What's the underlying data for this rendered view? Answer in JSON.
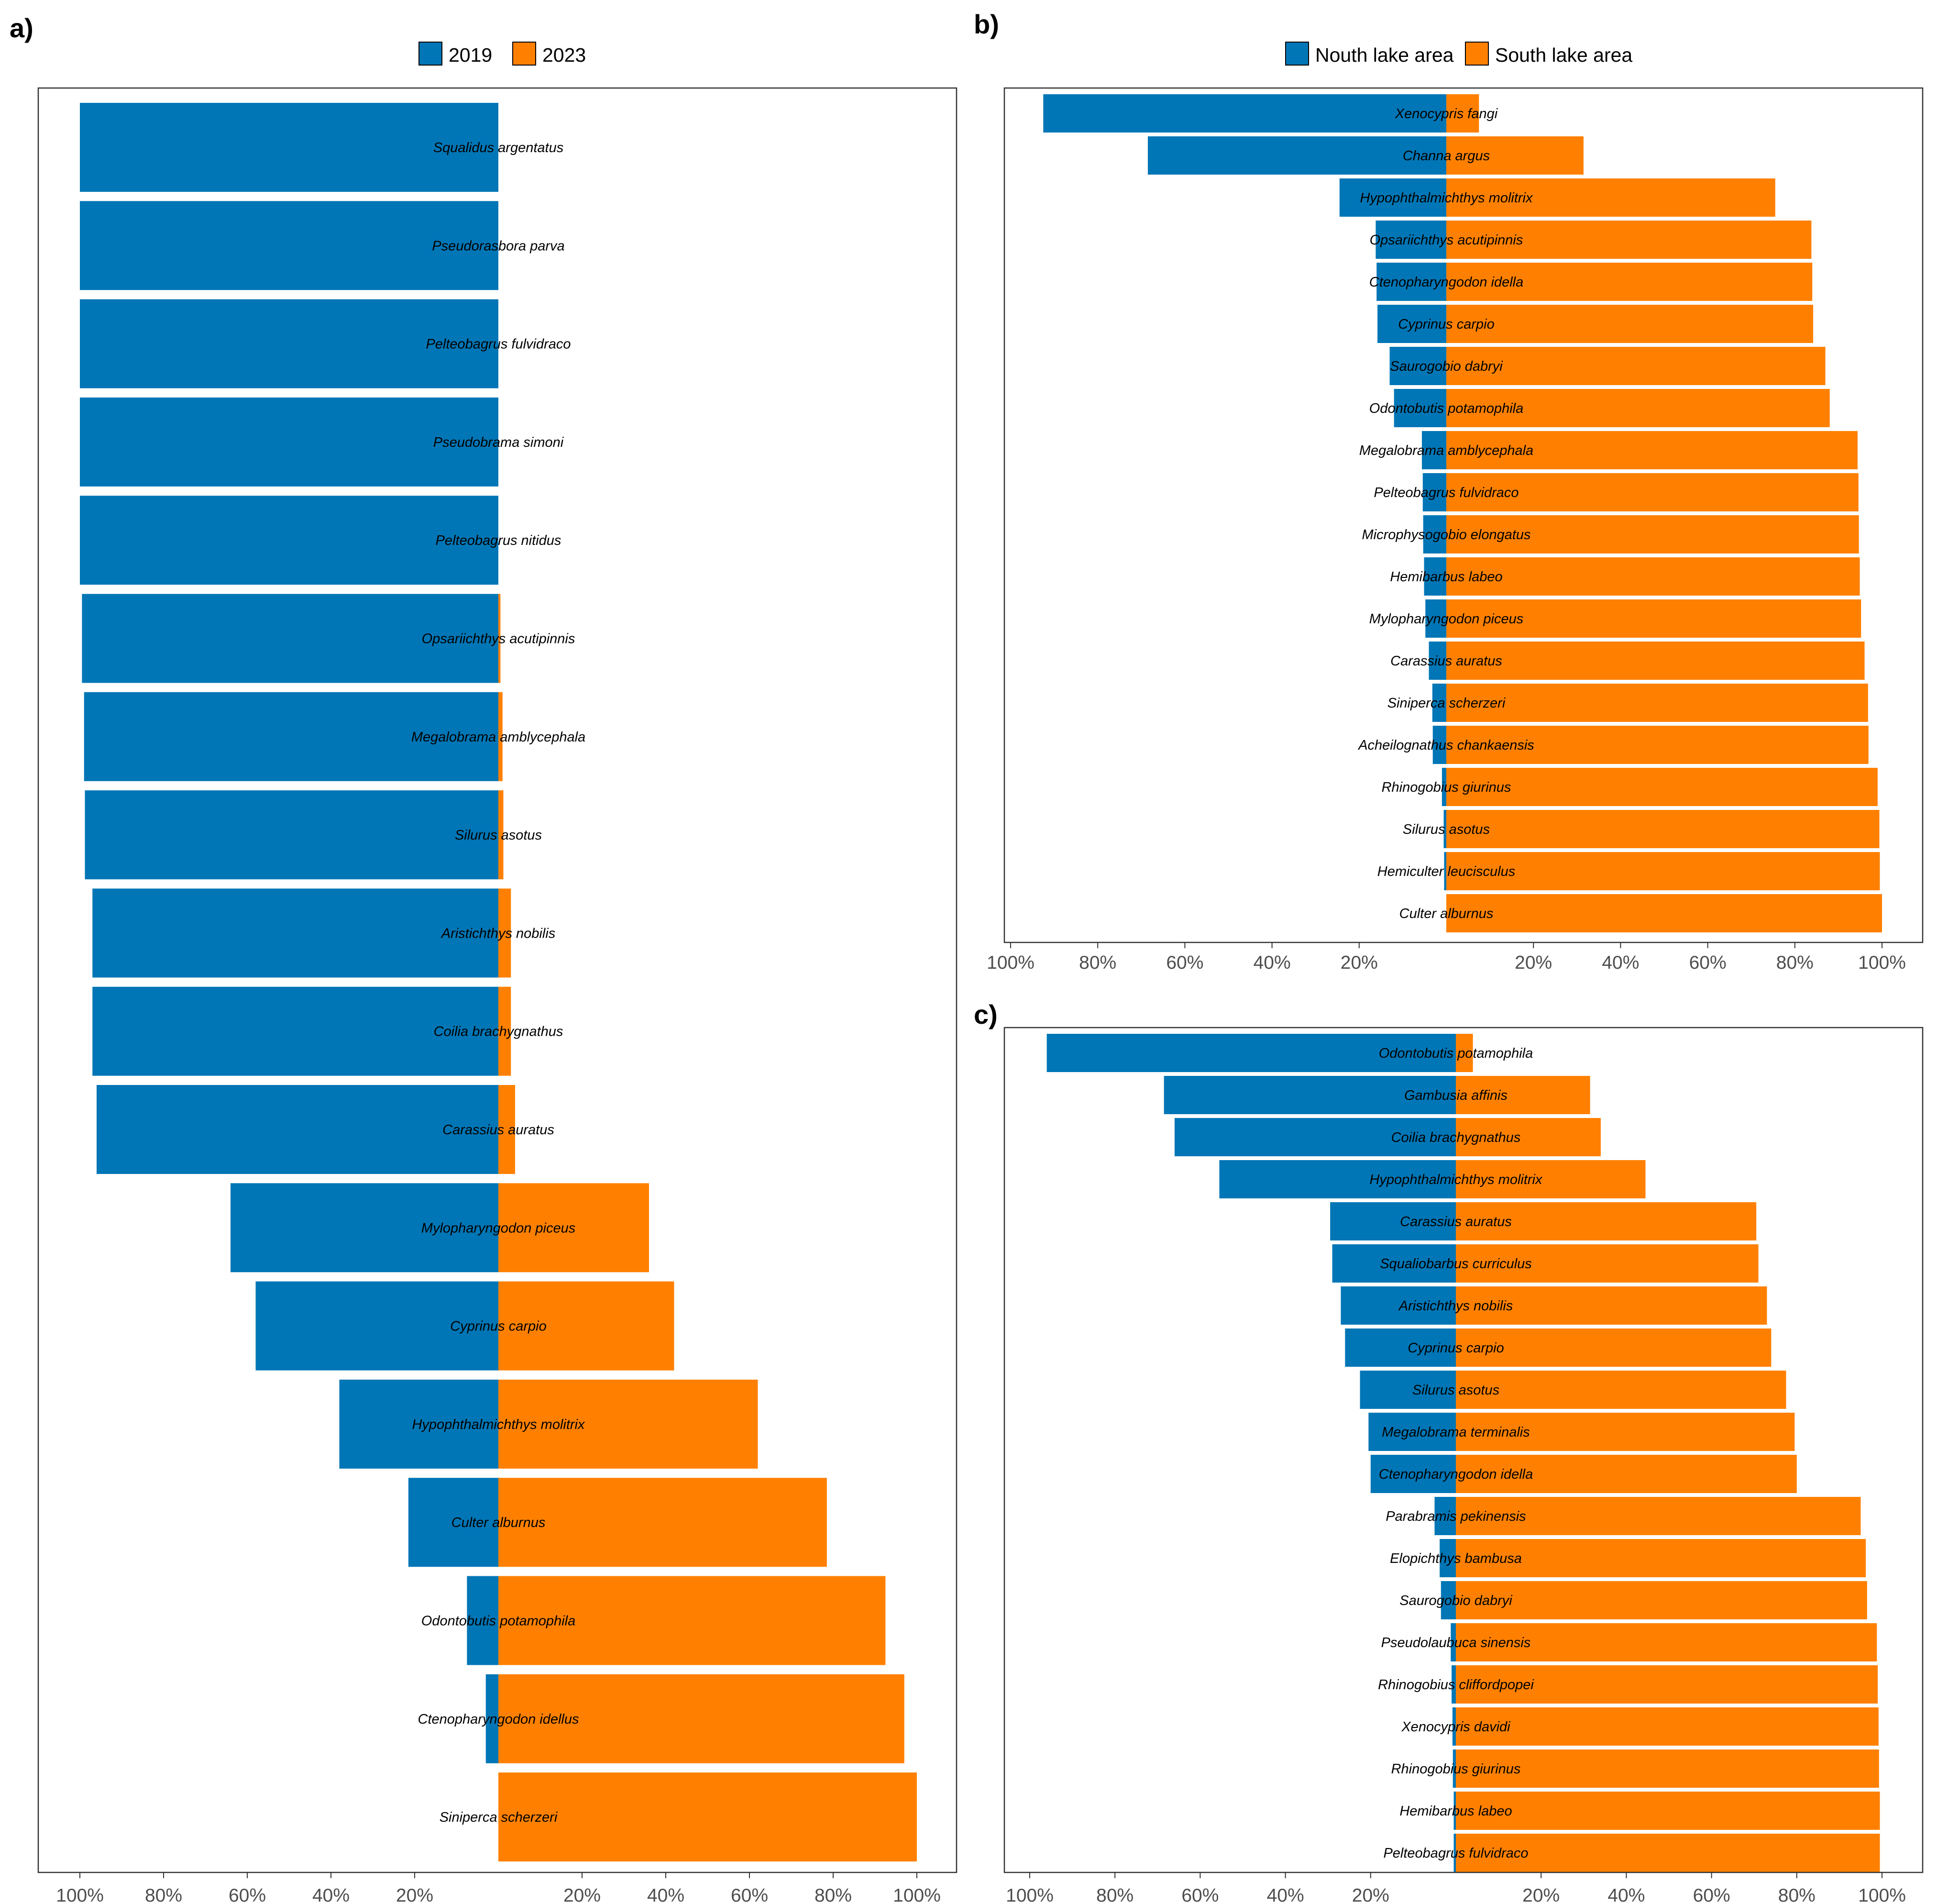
{
  "colors": {
    "blue": "#0076b6",
    "orange": "#ff8000"
  },
  "chart_data": [
    {
      "panel": "a)",
      "type": "bar",
      "orientation": "horizontal-diverging",
      "legend": [
        "2019",
        "2023"
      ],
      "legend_position": "top",
      "left_series": "2019",
      "right_series": "2023",
      "x_ticks_left": [
        "100%",
        "80%",
        "60%",
        "40%",
        "20%"
      ],
      "x_ticks_right": [
        "20%",
        "40%",
        "60%",
        "80%",
        "100%"
      ],
      "xlim": [
        -100,
        100
      ],
      "categories": [
        "Squalidus argentatus",
        "Pseudorasbora parva",
        "Pelteobagrus fulvidraco",
        "Pseudobrama simoni",
        "Pelteobagrus nitidus",
        "Opsariichthys acutipinnis",
        "Megalobrama amblycephala",
        "Silurus asotus",
        "Aristichthys nobilis",
        "Coilia brachygnathus",
        "Carassius auratus",
        "Mylopharyngodon piceus",
        "Cyprinus carpio",
        "Hypophthalmichthys molitrix",
        "Culter alburnus",
        "Odontobutis potamophila",
        "Ctenopharyngodon idellus",
        "Siniperca scherzeri"
      ],
      "series": [
        {
          "name": "2019",
          "values": [
            100,
            100,
            100,
            100,
            100,
            99.5,
            99,
            98.8,
            97,
            97,
            96,
            64,
            58,
            38,
            21.5,
            7.5,
            3,
            0
          ]
        },
        {
          "name": "2023",
          "values": [
            0,
            0,
            0,
            0,
            0,
            0.5,
            1,
            1.2,
            3,
            3,
            4,
            36,
            42,
            62,
            78.5,
            92.5,
            97,
            100
          ]
        }
      ]
    },
    {
      "panel": "b)",
      "type": "bar",
      "orientation": "horizontal-diverging",
      "legend": [
        "Nouth lake area",
        "South lake area"
      ],
      "legend_position": "top",
      "left_series": "Nouth lake area",
      "right_series": "South lake area",
      "x_ticks_left": [
        "100%",
        "80%",
        "60%",
        "40%",
        "20%"
      ],
      "x_ticks_right": [
        "20%",
        "40%",
        "60%",
        "80%",
        "100%"
      ],
      "xlim": [
        -100,
        100
      ],
      "categories": [
        "Xenocypris fangi",
        "Channa argus",
        "Hypophthalmichthys molitrix",
        "Opsariichthys acutipinnis",
        "Ctenopharyngodon idella",
        "Cyprinus carpio",
        "Saurogobio dabryi",
        "Odontobutis potamophila",
        "Megalobrama amblycephala",
        "Pelteobagrus fulvidraco",
        "Microphysogobio elongatus",
        "Hemibarbus labeo",
        "Mylopharyngodon piceus",
        "Carassius auratus",
        "Siniperca scherzeri",
        "Acheilognathus chankaensis",
        "Rhinogobius giurinus",
        "Silurus asotus",
        "Hemiculter leucisculus",
        "Culter alburnus"
      ],
      "series": [
        {
          "name": "Nouth lake area",
          "values": [
            92.5,
            68.5,
            24.5,
            16.2,
            16,
            15.8,
            13,
            12,
            5.6,
            5.4,
            5.3,
            5.1,
            4.8,
            4,
            3.2,
            3.1,
            1,
            0.6,
            0.5,
            0
          ]
        },
        {
          "name": "South lake area",
          "values": [
            7.5,
            31.5,
            75.5,
            83.8,
            84,
            84.2,
            87,
            88,
            94.4,
            94.6,
            94.7,
            94.9,
            95.2,
            96,
            96.8,
            96.9,
            99,
            99.4,
            99.5,
            100
          ]
        }
      ]
    },
    {
      "panel": "c)",
      "type": "bar",
      "orientation": "horizontal-diverging",
      "left_series": "Nouth lake area",
      "right_series": "South lake area",
      "x_ticks_left": [
        "100%",
        "80%",
        "60%",
        "40%",
        "20%"
      ],
      "x_ticks_right": [
        "20%",
        "40%",
        "60%",
        "80%",
        "100%"
      ],
      "xlim": [
        -100,
        100
      ],
      "categories": [
        "Odontobutis potamophila",
        "Gambusia affinis",
        "Coilia brachygnathus",
        "Hypophthalmichthys molitrix",
        "Carassius auratus",
        "Squaliobarbus curriculus",
        "Aristichthys nobilis",
        "Cyprinus carpio",
        "Silurus asotus",
        "Megalobrama terminalis",
        "Ctenopharyngodon idella",
        "Parabramis pekinensis",
        "Elopichthys bambusa",
        "Saurogobio dabryi",
        "Pseudolaubuca sinensis",
        "Rhinogobius cliffordpopei",
        "Xenocypris davidi",
        "Rhinogobius giurinus",
        "Hemibarbus labeo",
        "Pelteobagrus fulvidraco"
      ],
      "series": [
        {
          "name": "Nouth lake area",
          "values": [
            96,
            68.5,
            66,
            55.5,
            29.5,
            29,
            27,
            26,
            22.5,
            20.5,
            20,
            5,
            3.8,
            3.5,
            1.2,
            1,
            0.8,
            0.7,
            0.5,
            0.5
          ]
        },
        {
          "name": "South lake area",
          "values": [
            4,
            31.5,
            34,
            44.5,
            70.5,
            71,
            73,
            74,
            77.5,
            79.5,
            80,
            95,
            96.2,
            96.5,
            98.8,
            99,
            99.2,
            99.3,
            99.5,
            99.5
          ]
        }
      ]
    }
  ]
}
